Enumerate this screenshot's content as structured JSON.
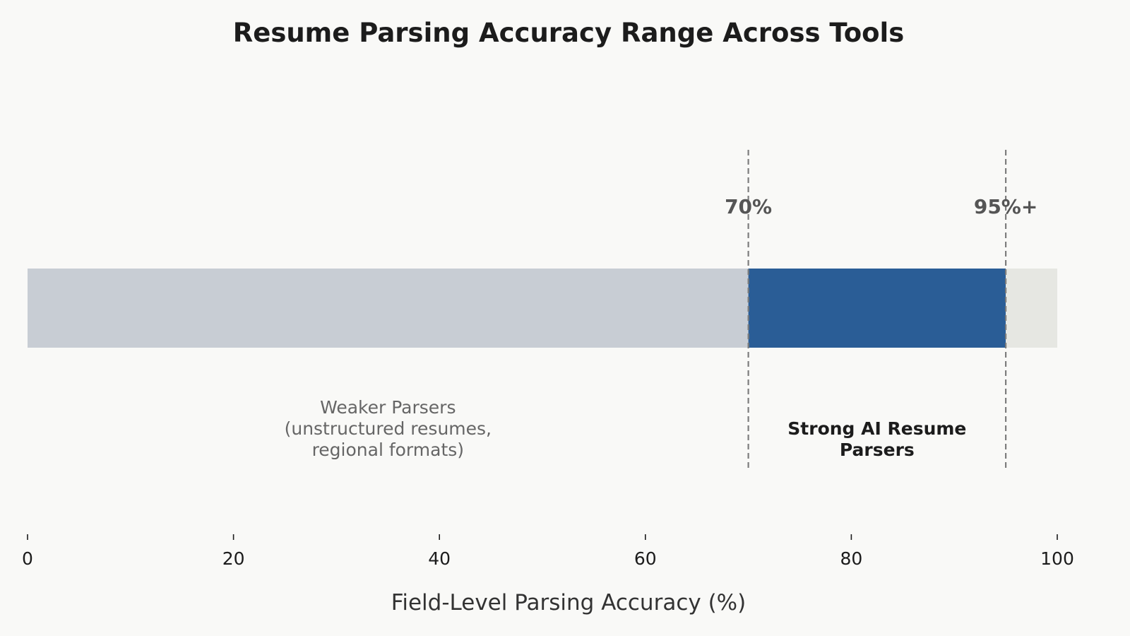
{
  "chart_data": {
    "type": "bar",
    "title": "Resume Parsing Accuracy Range Across Tools",
    "xlabel": "Field-Level Parsing Accuracy (%)",
    "ylabel": "",
    "xlim": [
      0,
      100
    ],
    "xticks": [
      0,
      20,
      40,
      60,
      80,
      100
    ],
    "grid": false,
    "segments": [
      {
        "start": 0,
        "end": 70,
        "color": "#c8cdd4"
      },
      {
        "start": 70,
        "end": 95,
        "color": "#2a5d96"
      },
      {
        "start": 95,
        "end": 100,
        "color": "#e6e7e2"
      }
    ],
    "thresholds": [
      {
        "value": 70,
        "label": "70%"
      },
      {
        "value": 95,
        "label": "95%+"
      }
    ],
    "region_labels": [
      {
        "center": 35,
        "lines": [
          "Weaker Parsers",
          "(unstructured resumes,",
          "regional formats)"
        ],
        "bold": false,
        "color": "#666666"
      },
      {
        "center": 82.5,
        "lines": [
          "Strong AI Resume",
          "Parsers"
        ],
        "bold": true,
        "color": "#1c1c1c"
      }
    ]
  }
}
